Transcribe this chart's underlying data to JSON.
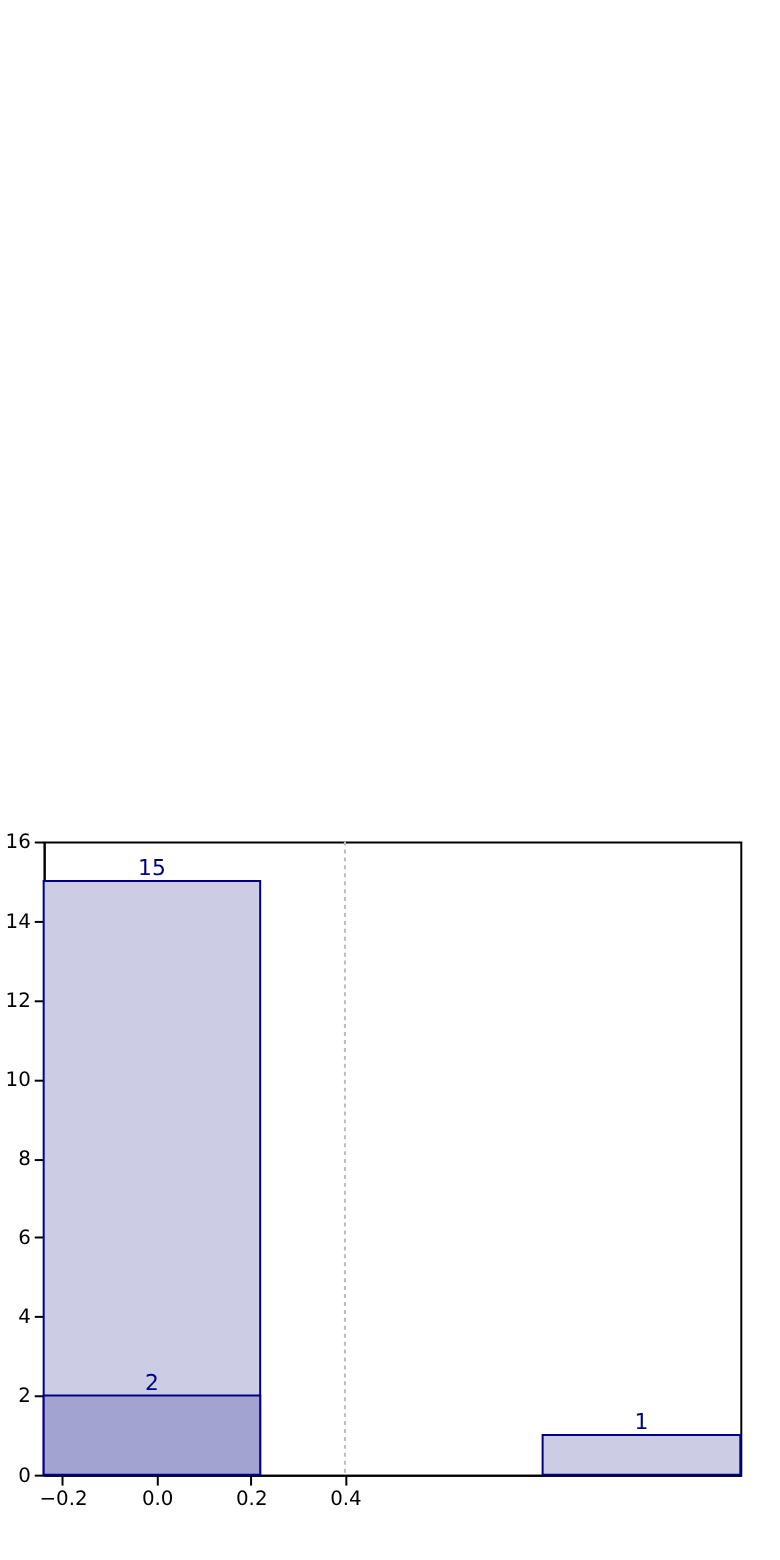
{
  "chart_data": {
    "type": "histogram",
    "bins": [
      -0.24,
      0.22,
      0.82,
      1.24
    ],
    "series": [
      {
        "color": "#cccce5",
        "values": [
          15,
          null,
          1
        ]
      },
      {
        "color": "#a3a3d1",
        "values": [
          2,
          null,
          null
        ]
      }
    ],
    "xlim": [
      -0.24,
      1.24
    ],
    "xticks": [
      {
        "value": -0.2,
        "label": "−0.2"
      },
      {
        "value": 0,
        "label": "0.0"
      },
      {
        "value": 0.2,
        "label": "0.2"
      },
      {
        "value": 0.4,
        "label": "0.4"
      }
    ],
    "ylim": [
      0,
      16
    ],
    "yticks": [
      0,
      2,
      4,
      6,
      8,
      10,
      12,
      14,
      16
    ],
    "ref_lines": [
      {
        "axis": "x",
        "value": 0.4,
        "color": "#bbbbbb",
        "line_style": "dotted"
      }
    ],
    "data_labels": true,
    "grid": false
  }
}
